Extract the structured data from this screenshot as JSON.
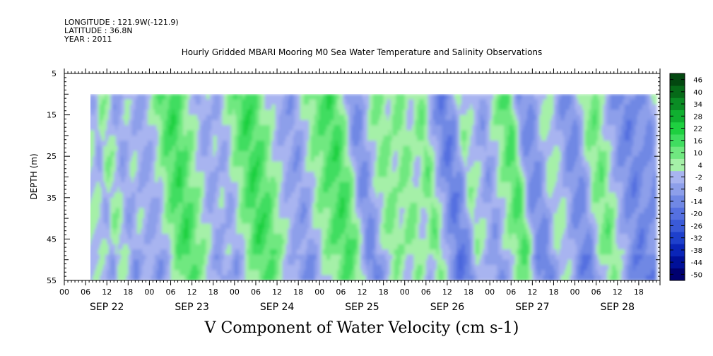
{
  "header": {
    "longitude": "LONGITUDE : 121.9W(-121.9)",
    "latitude": "LATITUDE : 36.8N",
    "year": "YEAR : 2011",
    "title": "Hourly Gridded MBARI Mooring M0 Sea Water Temperature and Salinity Observations"
  },
  "chart_data": {
    "type": "heatmap",
    "title": "V Component of Water Velocity (cm s-1)",
    "ylabel": "DEPTH (m)",
    "xlabel": "",
    "ylim": [
      5,
      55
    ],
    "y_inverted": true,
    "yticks": [
      5,
      15,
      25,
      35,
      45,
      55
    ],
    "y_data_range": [
      10,
      55
    ],
    "x_range_hours": [
      0,
      168
    ],
    "x_data_start_hour": 6,
    "x_data_end_hour": 167,
    "hour_ticks": [
      "00",
      "06",
      "12",
      "18"
    ],
    "day_labels": [
      "SEP 22",
      "SEP 23",
      "SEP 24",
      "SEP 25",
      "SEP 26",
      "SEP 27",
      "SEP 28"
    ],
    "colorbar": {
      "levels": [
        -50,
        -44,
        -38,
        -32,
        -26,
        -20,
        -14,
        -8,
        -2,
        4,
        10,
        16,
        22,
        28,
        34,
        40,
        46
      ],
      "labels": [
        "46",
        "40",
        "34",
        "28",
        "22",
        "16",
        "10",
        "4",
        "-2",
        "-8",
        "-14",
        "-20",
        "-26",
        "-32",
        "-38",
        "-44",
        "-50"
      ],
      "colors": [
        "#000070",
        "#001099",
        "#0a25b8",
        "#1e40cc",
        "#3a5ad8",
        "#5570e0",
        "#7088e4",
        "#8d9fea",
        "#a8b4f0",
        "#a5f0a8",
        "#70e880",
        "#40dd60",
        "#1ed040",
        "#10b030",
        "#0a8c24",
        "#066a18",
        "#034810"
      ]
    },
    "bands": [
      {
        "hour": 6,
        "value": 5
      },
      {
        "hour": 8,
        "value": -3
      },
      {
        "hour": 9.5,
        "value": 8
      },
      {
        "hour": 12,
        "value": 6
      },
      {
        "hour": 14,
        "value": -5
      },
      {
        "hour": 17,
        "value": 3
      },
      {
        "hour": 21,
        "value": -4
      },
      {
        "hour": 24,
        "value": 3
      },
      {
        "hour": 27,
        "value": 16
      },
      {
        "hour": 30,
        "value": 20
      },
      {
        "hour": 33,
        "value": 12
      },
      {
        "hour": 36,
        "value": 4
      },
      {
        "hour": 38,
        "value": -4
      },
      {
        "hour": 41,
        "value": 2
      },
      {
        "hour": 43,
        "value": -3
      },
      {
        "hour": 46,
        "value": 8
      },
      {
        "hour": 50,
        "value": 20
      },
      {
        "hour": 53,
        "value": 18
      },
      {
        "hour": 57,
        "value": 6
      },
      {
        "hour": 60,
        "value": -2
      },
      {
        "hour": 64,
        "value": -6
      },
      {
        "hour": 68,
        "value": 8
      },
      {
        "hour": 72,
        "value": 16
      },
      {
        "hour": 75,
        "value": 20
      },
      {
        "hour": 78,
        "value": 10
      },
      {
        "hour": 80,
        "value": -6
      },
      {
        "hour": 82,
        "value": -10
      },
      {
        "hour": 85,
        "value": 4
      },
      {
        "hour": 88,
        "value": 12
      },
      {
        "hour": 91,
        "value": 6
      },
      {
        "hour": 94,
        "value": 12
      },
      {
        "hour": 97,
        "value": 3
      },
      {
        "hour": 100,
        "value": 14
      },
      {
        "hour": 103,
        "value": -2
      },
      {
        "hour": 106,
        "value": -14
      },
      {
        "hour": 109,
        "value": -8
      },
      {
        "hour": 111,
        "value": 8
      },
      {
        "hour": 114,
        "value": 3
      },
      {
        "hour": 117,
        "value": -6
      },
      {
        "hour": 120,
        "value": 5
      },
      {
        "hour": 123,
        "value": 14
      },
      {
        "hour": 125,
        "value": 18
      },
      {
        "hour": 128,
        "value": -8
      },
      {
        "hour": 131,
        "value": -10
      },
      {
        "hour": 134,
        "value": 6
      },
      {
        "hour": 137,
        "value": 4
      },
      {
        "hour": 140,
        "value": -8
      },
      {
        "hour": 143,
        "value": -10
      },
      {
        "hour": 146,
        "value": 8
      },
      {
        "hour": 149,
        "value": 14
      },
      {
        "hour": 152,
        "value": 2
      },
      {
        "hour": 155,
        "value": -8
      },
      {
        "hour": 158,
        "value": -12
      },
      {
        "hour": 161,
        "value": -6
      },
      {
        "hour": 164,
        "value": -10
      },
      {
        "hour": 166,
        "value": 2
      },
      {
        "hour": 167,
        "value": 6
      }
    ]
  }
}
